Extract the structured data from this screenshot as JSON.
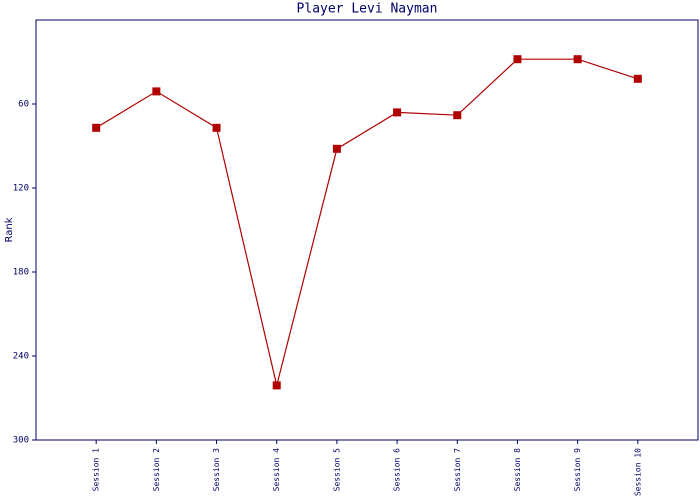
{
  "chart_data": {
    "type": "line",
    "title": "Player Levi Nayman",
    "y_label": "Rank",
    "categories": [
      "Session 1",
      "Session 2",
      "Session 3",
      "Session 4",
      "Session 5",
      "Session 6",
      "Session 7",
      "Session 8",
      "Session 9",
      "Session 10"
    ],
    "series": [
      {
        "name": "Rank",
        "color": "#b00000",
        "values": [
          77,
          51,
          77,
          261,
          92,
          66,
          68,
          28,
          28,
          42
        ]
      }
    ],
    "ylim": [
      300,
      0
    ],
    "yticks": [
      60,
      120,
      180,
      240,
      300
    ],
    "grid": false
  }
}
